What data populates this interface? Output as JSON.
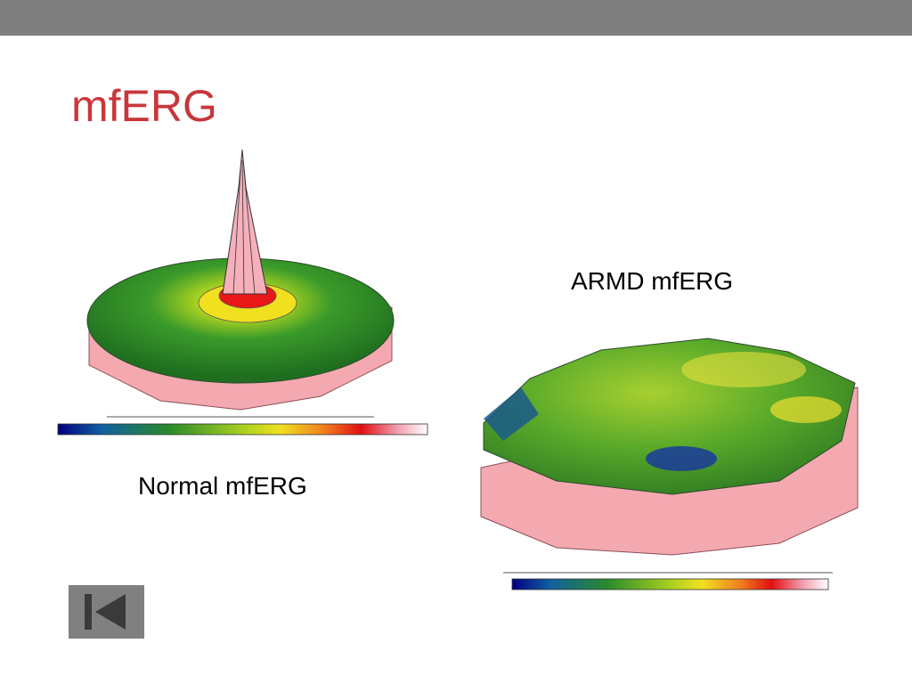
{
  "header": {
    "title": "mfERG"
  },
  "figures": [
    {
      "caption": "Normal mfERG"
    },
    {
      "caption": "ARMD mfERG"
    }
  ]
}
